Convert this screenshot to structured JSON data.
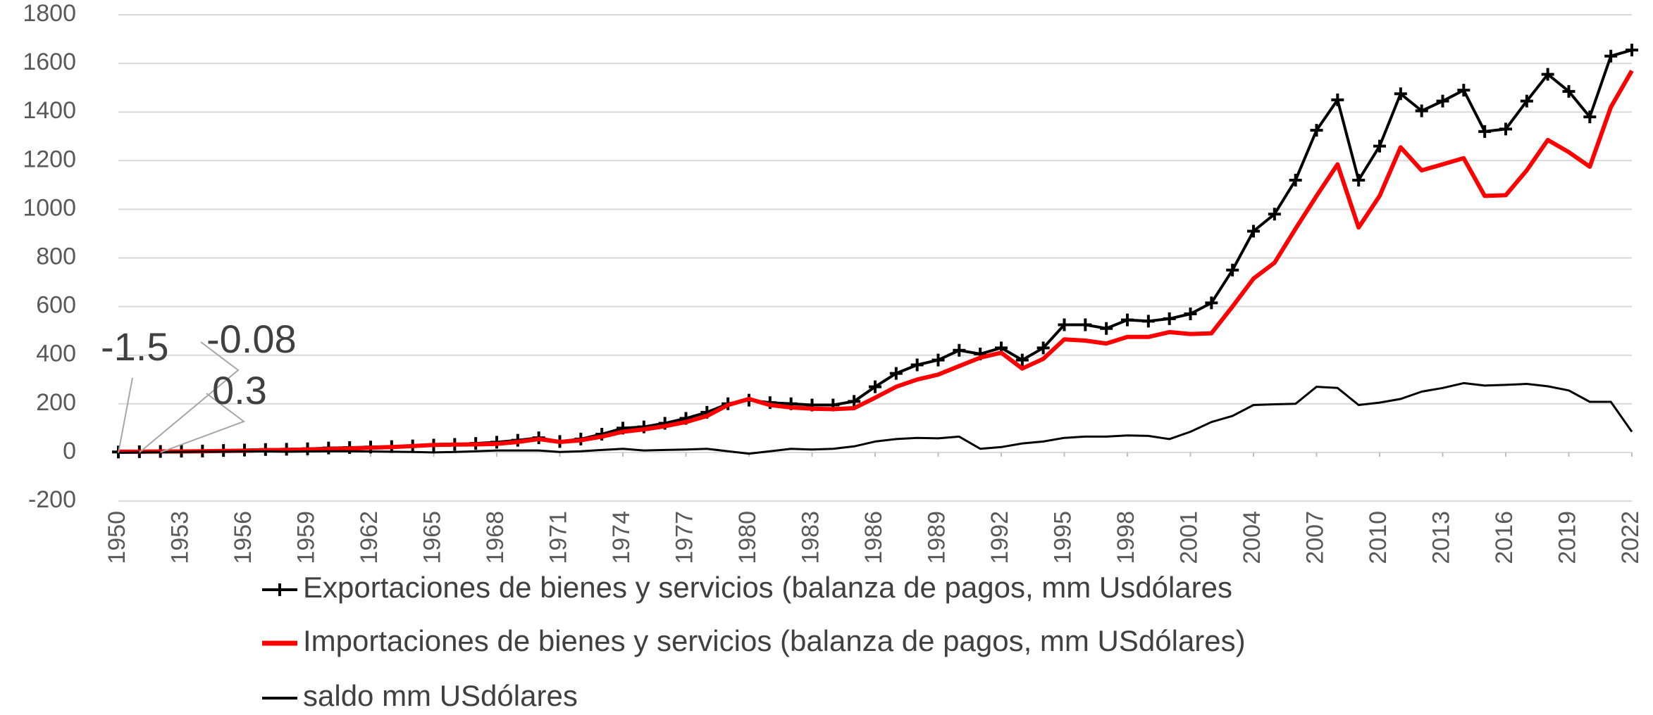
{
  "chart_data": {
    "type": "line",
    "x": [
      1950,
      1951,
      1952,
      1953,
      1954,
      1955,
      1956,
      1957,
      1958,
      1959,
      1960,
      1961,
      1962,
      1963,
      1964,
      1965,
      1966,
      1967,
      1968,
      1969,
      1970,
      1971,
      1972,
      1973,
      1974,
      1975,
      1976,
      1977,
      1978,
      1979,
      1980,
      1981,
      1982,
      1983,
      1984,
      1985,
      1986,
      1987,
      1988,
      1989,
      1990,
      1991,
      1992,
      1993,
      1994,
      1995,
      1996,
      1997,
      1998,
      1999,
      2000,
      2001,
      2002,
      2003,
      2004,
      2005,
      2006,
      2007,
      2008,
      2009,
      2010,
      2011,
      2012,
      2013,
      2014,
      2015,
      2016,
      2017,
      2018,
      2019,
      2020,
      2021,
      2022
    ],
    "series": [
      {
        "name": "Exportaciones de bienes y servicios (balanza de pagos, mm Usdólares",
        "color": "#000000",
        "marker": "+",
        "values": [
          2,
          3,
          4,
          5,
          6,
          8,
          10,
          12,
          13,
          15,
          18,
          20,
          22,
          24,
          27,
          30,
          33,
          37,
          42,
          50,
          60,
          45,
          55,
          75,
          100,
          105,
          120,
          140,
          165,
          200,
          215,
          205,
          200,
          195,
          195,
          210,
          270,
          325,
          360,
          380,
          420,
          405,
          430,
          380,
          430,
          525,
          525,
          510,
          545,
          540,
          550,
          570,
          615,
          750,
          910,
          980,
          1120,
          1325,
          1450,
          1120,
          1260,
          1475,
          1405,
          1445,
          1490,
          1320,
          1330,
          1445,
          1555,
          1485,
          1380,
          1630,
          1655
        ]
      },
      {
        "name": "Importaciones de bienes y servicios (balanza de pagos, mm USdólares)",
        "color": "#ff0000",
        "values": [
          3,
          3,
          4,
          4,
          5,
          6,
          7,
          9,
          10,
          12,
          14,
          16,
          19,
          22,
          26,
          31,
          32,
          33,
          35,
          43,
          55,
          43,
          50,
          65,
          85,
          95,
          108,
          125,
          150,
          195,
          220,
          195,
          185,
          180,
          178,
          182,
          225,
          270,
          300,
          320,
          355,
          390,
          410,
          345,
          385,
          465,
          460,
          448,
          475,
          475,
          495,
          487,
          490,
          600,
          715,
          780,
          920,
          1055,
          1185,
          925,
          1055,
          1255,
          1160,
          1185,
          1210,
          1055,
          1058,
          1160,
          1285,
          1235,
          1175,
          1420,
          1570
        ]
      },
      {
        "name": "saldo mm USdólares",
        "color": "#000000",
        "values": [
          -1.5,
          -0.08,
          0.3,
          2,
          3,
          3,
          4,
          4,
          3,
          4,
          5,
          5,
          4,
          3,
          2,
          0,
          2,
          5,
          8,
          8,
          8,
          2,
          5,
          10,
          15,
          8,
          10,
          12,
          15,
          5,
          -5,
          5,
          15,
          12,
          15,
          25,
          45,
          55,
          60,
          58,
          65,
          15,
          22,
          37,
          45,
          60,
          65,
          65,
          70,
          68,
          55,
          85,
          125,
          150,
          195,
          198,
          200,
          270,
          265,
          195,
          205,
          220,
          250,
          265,
          285,
          275,
          278,
          282,
          272,
          255,
          208,
          208,
          85
        ],
        "value_labels": [
          "-1.5",
          "-0.08",
          "0.3",
          null,
          null,
          null,
          null,
          null,
          null,
          null,
          null,
          null,
          null,
          null,
          null,
          null,
          null,
          null,
          null,
          null,
          null,
          null,
          null,
          null,
          null,
          null,
          null,
          null,
          null,
          null,
          null,
          null,
          null,
          null,
          null,
          null,
          null,
          null,
          null,
          null,
          null,
          null,
          null,
          null,
          null,
          null,
          null,
          null,
          null,
          null,
          null,
          null,
          null,
          null,
          null,
          null,
          null,
          null,
          null,
          null,
          null,
          null,
          null,
          null,
          null,
          null,
          null,
          null,
          null,
          null,
          null,
          null,
          null
        ]
      }
    ],
    "xlim": [
      1950,
      2022
    ],
    "xticks": [
      1950,
      1953,
      1956,
      1959,
      1962,
      1965,
      1968,
      1971,
      1974,
      1977,
      1980,
      1983,
      1986,
      1989,
      1992,
      1995,
      1998,
      2001,
      2004,
      2007,
      2010,
      2013,
      2016,
      2019,
      2022
    ],
    "ylim": [
      -200,
      1800
    ],
    "yticks": [
      -200,
      0,
      200,
      400,
      600,
      800,
      1000,
      1200,
      1400,
      1600,
      1800
    ],
    "grid": true
  }
}
